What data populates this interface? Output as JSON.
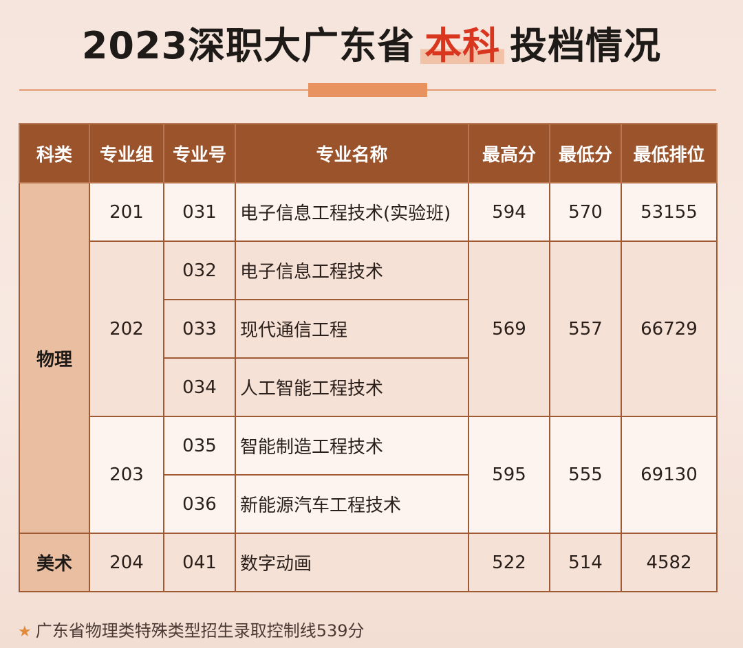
{
  "title": {
    "prefix": "2023深职大广东省",
    "highlight": "本科",
    "suffix": "投档情况"
  },
  "table": {
    "headers": [
      "科类",
      "专业组",
      "专业号",
      "专业名称",
      "最高分",
      "最低分",
      "最低排位"
    ],
    "categories": [
      "物理",
      "美术"
    ],
    "groups": [
      {
        "group": "201",
        "majors": [
          {
            "code": "031",
            "name": "电子信息工程技术(实验班)"
          }
        ],
        "max": "594",
        "min": "570",
        "rank": "53155"
      },
      {
        "group": "202",
        "majors": [
          {
            "code": "032",
            "name": "电子信息工程技术"
          },
          {
            "code": "033",
            "name": "现代通信工程"
          },
          {
            "code": "034",
            "name": "人工智能工程技术"
          }
        ],
        "max": "569",
        "min": "557",
        "rank": "66729"
      },
      {
        "group": "203",
        "majors": [
          {
            "code": "035",
            "name": "智能制造工程技术"
          },
          {
            "code": "036",
            "name": "新能源汽车工程技术"
          }
        ],
        "max": "595",
        "min": "555",
        "rank": "69130"
      },
      {
        "group": "204",
        "majors": [
          {
            "code": "041",
            "name": "数字动画"
          }
        ],
        "max": "522",
        "min": "514",
        "rank": "4582"
      }
    ]
  },
  "note": {
    "icon": "star-icon",
    "text": "广东省物理类特殊类型招生录取控制线539分"
  },
  "colors": {
    "header_bg": "#9a532b",
    "highlight_text": "#d9361f",
    "accent": "#e8925f"
  }
}
